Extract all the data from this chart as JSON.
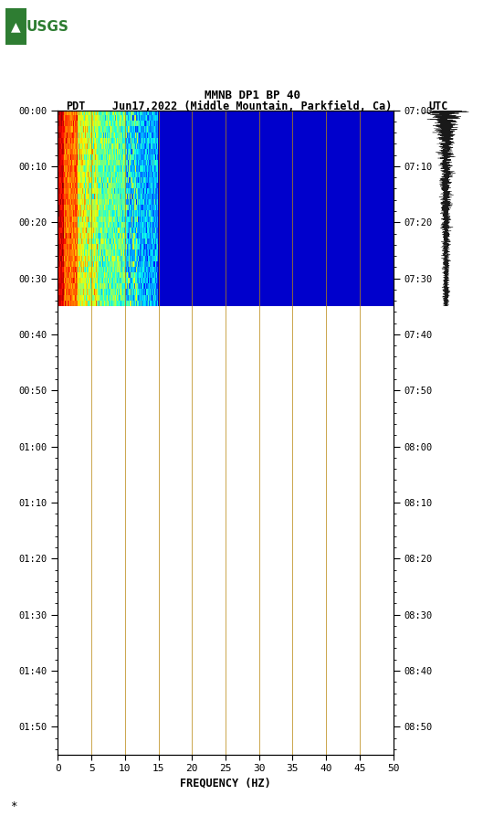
{
  "title_line1": "MMNB DP1 BP 40",
  "title_line2_pdt": "PDT",
  "title_line2_date": "Jun17,2022 (Middle Mountain, Parkfield, Ca)",
  "title_line2_utc": "UTC",
  "freq_min": 0,
  "freq_max": 50,
  "freq_ticks": [
    0,
    5,
    10,
    15,
    20,
    25,
    30,
    35,
    40,
    45,
    50
  ],
  "freq_gridlines": [
    5,
    10,
    15,
    20,
    25,
    30,
    35,
    40,
    45
  ],
  "xlabel": "FREQUENCY (HZ)",
  "left_time_labels": [
    "00:00",
    "00:10",
    "00:20",
    "00:30",
    "00:40",
    "00:50",
    "01:00",
    "01:10",
    "01:20",
    "01:30",
    "01:40",
    "01:50"
  ],
  "right_time_labels": [
    "07:00",
    "07:10",
    "07:20",
    "07:30",
    "07:40",
    "07:50",
    "08:00",
    "08:10",
    "08:20",
    "08:30",
    "08:40",
    "08:50"
  ],
  "total_minutes": 115,
  "active_minutes": 35,
  "bg_color": "#ffffff",
  "spec_bg_color": "#00008B",
  "usgs_logo_color": "#006400",
  "gridline_color": "#808080"
}
